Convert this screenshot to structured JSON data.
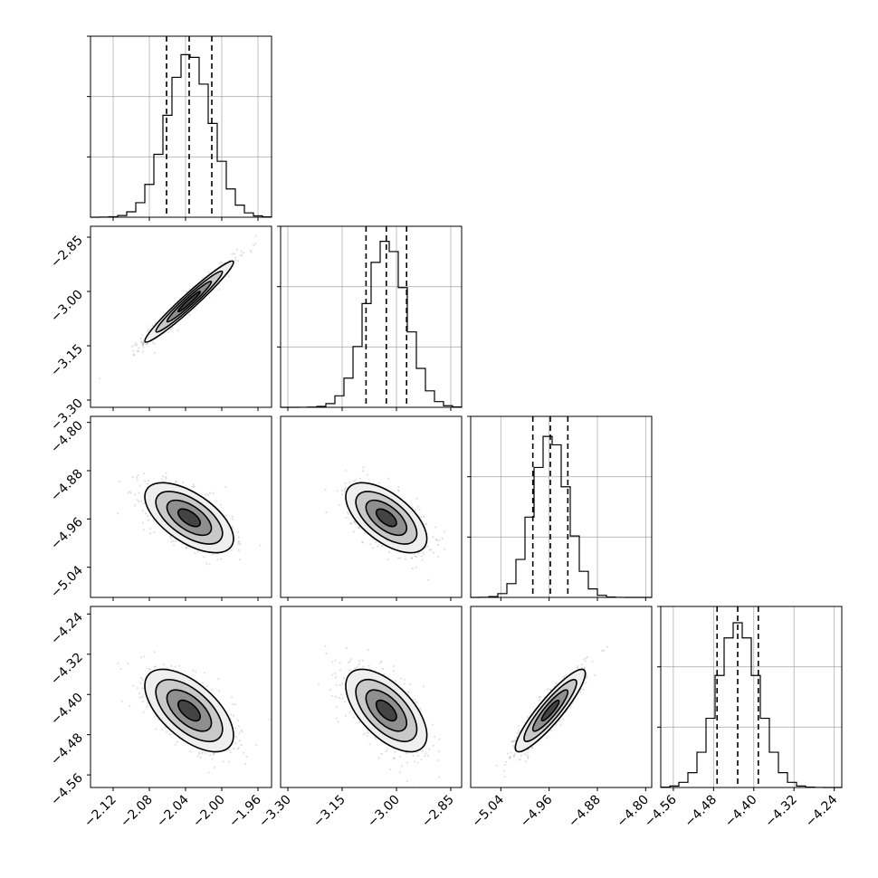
{
  "chart_data": {
    "type": "corner",
    "parameters": [
      {
        "id": "p1",
        "range": [
          -2.145,
          -1.945
        ],
        "ticks": [
          -2.12,
          -2.08,
          -2.04,
          -2.0,
          -1.96
        ],
        "tick_labels": [
          "−2.12",
          "−2.08",
          "−2.04",
          "−2.00",
          "−1.96"
        ],
        "quantiles": [
          -2.061,
          -2.036,
          -2.011
        ],
        "mean": -2.036,
        "sd": 0.0245,
        "hist_peak_fraction": 0.91
      },
      {
        "id": "p2",
        "range": [
          -3.32,
          -2.82
        ],
        "ticks": [
          -3.3,
          -3.15,
          -3.0,
          -2.85
        ],
        "tick_labels": [
          "−3.30",
          "−3.15",
          "−3.00",
          "−2.85"
        ],
        "quantiles": [
          -3.084,
          -3.028,
          -2.972
        ],
        "mean": -3.028,
        "sd": 0.056,
        "hist_peak_fraction": 0.92
      },
      {
        "id": "p3",
        "range": [
          -5.09,
          -4.79
        ],
        "ticks": [
          -5.04,
          -4.96,
          -4.88,
          -4.8
        ],
        "tick_labels": [
          "−5.04",
          "−4.96",
          "−4.88",
          "−4.80"
        ],
        "quantiles": [
          -4.987,
          -4.958,
          -4.929
        ],
        "mean": -4.958,
        "sd": 0.029,
        "hist_peak_fraction": 0.9
      },
      {
        "id": "p4",
        "range": [
          -4.585,
          -4.225
        ],
        "ticks": [
          -4.56,
          -4.48,
          -4.4,
          -4.32,
          -4.24
        ],
        "tick_labels": [
          "−4.56",
          "−4.48",
          "−4.40",
          "−4.32",
          "−4.24"
        ],
        "quantiles": [
          -4.473,
          -4.432,
          -4.391
        ],
        "mean": -4.432,
        "sd": 0.041,
        "hist_peak_fraction": 0.91
      }
    ],
    "correlations": [
      {
        "pair": [
          0,
          1
        ],
        "rho": 0.97
      },
      {
        "pair": [
          0,
          2
        ],
        "rho": -0.6
      },
      {
        "pair": [
          1,
          2
        ],
        "rho": -0.6
      },
      {
        "pair": [
          0,
          3
        ],
        "rho": -0.6
      },
      {
        "pair": [
          1,
          3
        ],
        "rho": -0.6
      },
      {
        "pair": [
          2,
          3
        ],
        "rho": 0.9
      }
    ],
    "contour_levels_sigma": [
      0.5,
      1.0,
      1.5,
      2.0
    ],
    "scatter_outside_contours": true,
    "grid": true,
    "title": "",
    "axis_labels": []
  }
}
